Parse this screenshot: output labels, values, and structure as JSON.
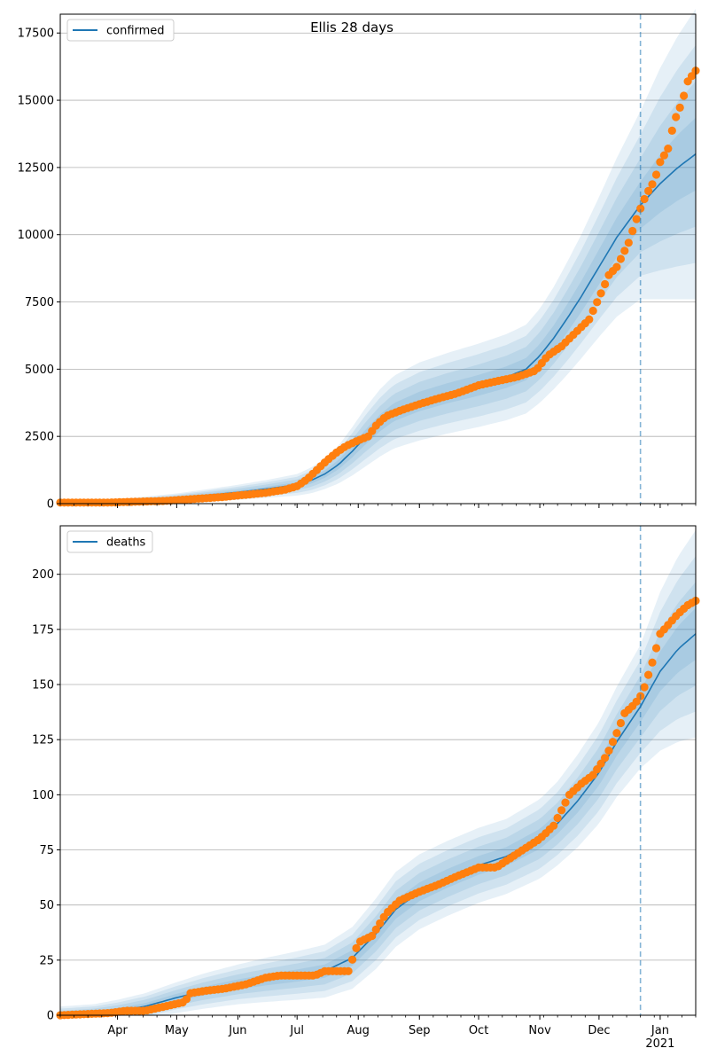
{
  "figure": {
    "title": "Ellis 28 days"
  },
  "colors": {
    "model_line": "#1f77b4",
    "band": "#1f77b4",
    "observed": "#ff7f0e",
    "grid": "#b0b0b0",
    "marker_line": "#1f77b4"
  },
  "chart_data": [
    {
      "type": "line",
      "legend": "confirmed",
      "legend_position": "top-left",
      "grid": "y",
      "ylim": [
        0,
        18200
      ],
      "yticks": [
        0,
        2500,
        5000,
        7500,
        10000,
        12500,
        15000,
        17500
      ],
      "x_range": [
        "2020-03-03",
        "2021-01-19"
      ],
      "xtick_labels": [],
      "vertical_marker": "2020-12-22",
      "series": [
        {
          "name": "confirmed",
          "kind": "model",
          "x": [
            "2020-03-03",
            "2020-03-20",
            "2020-04-01",
            "2020-04-15",
            "2020-05-01",
            "2020-05-15",
            "2020-06-01",
            "2020-06-15",
            "2020-07-01",
            "2020-07-08",
            "2020-07-15",
            "2020-07-22",
            "2020-07-29",
            "2020-08-05",
            "2020-08-12",
            "2020-08-19",
            "2020-09-01",
            "2020-09-15",
            "2020-10-01",
            "2020-10-15",
            "2020-10-25",
            "2020-11-01",
            "2020-11-08",
            "2020-11-15",
            "2020-11-22",
            "2020-12-01",
            "2020-12-10",
            "2020-12-22",
            "2021-01-01",
            "2021-01-10",
            "2021-01-19"
          ],
          "values": [
            0,
            10,
            60,
            120,
            200,
            300,
            420,
            540,
            700,
            860,
            1100,
            1450,
            1950,
            2500,
            3000,
            3400,
            3800,
            4100,
            4400,
            4700,
            5000,
            5500,
            6150,
            6900,
            7700,
            8800,
            9900,
            11100,
            11900,
            12500,
            13000
          ],
          "band_width": [
            40,
            60,
            100,
            140,
            180,
            220,
            280,
            330,
            400,
            480,
            560,
            700,
            900,
            1100,
            1250,
            1350,
            1450,
            1500,
            1550,
            1600,
            1650,
            1750,
            1900,
            2100,
            2300,
            2600,
            2950,
            3500,
            4300,
            4900,
            5400
          ]
        },
        {
          "name": "observed confirmed",
          "kind": "observed",
          "x": [
            "2020-03-03",
            "2020-03-15",
            "2020-03-28",
            "2020-04-05",
            "2020-04-15",
            "2020-04-25",
            "2020-05-05",
            "2020-05-15",
            "2020-05-25",
            "2020-06-05",
            "2020-06-15",
            "2020-06-25",
            "2020-07-01",
            "2020-07-06",
            "2020-07-11",
            "2020-07-16",
            "2020-07-21",
            "2020-07-26",
            "2020-08-01",
            "2020-08-06",
            "2020-08-10",
            "2020-08-15",
            "2020-08-22",
            "2020-09-01",
            "2020-09-10",
            "2020-09-20",
            "2020-10-01",
            "2020-10-10",
            "2020-10-20",
            "2020-10-30",
            "2020-11-05",
            "2020-11-12",
            "2020-11-19",
            "2020-11-26",
            "2020-12-01",
            "2020-12-06",
            "2020-12-10",
            "2020-12-16",
            "2020-12-21",
            "2020-12-25",
            "2020-12-29",
            "2021-01-01",
            "2021-01-05",
            "2021-01-08",
            "2021-01-12",
            "2021-01-15",
            "2021-01-19"
          ],
          "values": [
            40,
            40,
            40,
            60,
            80,
            100,
            150,
            200,
            250,
            330,
            400,
            520,
            650,
            900,
            1250,
            1600,
            1900,
            2150,
            2350,
            2500,
            2900,
            3250,
            3450,
            3700,
            3900,
            4100,
            4400,
            4550,
            4700,
            4950,
            5500,
            5850,
            6350,
            6850,
            7650,
            8500,
            8800,
            9700,
            10800,
            11500,
            12000,
            12700,
            13200,
            14200,
            14900,
            15700,
            16100
          ]
        }
      ]
    },
    {
      "type": "line",
      "legend": "deaths",
      "legend_position": "top-left",
      "grid": "y",
      "ylim": [
        0,
        222
      ],
      "yticks": [
        0,
        25,
        50,
        75,
        100,
        125,
        150,
        175,
        200
      ],
      "x_range": [
        "2020-03-03",
        "2021-01-19"
      ],
      "xtick_labels": [
        {
          "date": "2020-04-01",
          "label": "Apr"
        },
        {
          "date": "2020-05-01",
          "label": "May"
        },
        {
          "date": "2020-06-01",
          "label": "Jun"
        },
        {
          "date": "2020-07-01",
          "label": "Jul"
        },
        {
          "date": "2020-08-01",
          "label": "Aug"
        },
        {
          "date": "2020-09-01",
          "label": "Sep"
        },
        {
          "date": "2020-10-01",
          "label": "Oct"
        },
        {
          "date": "2020-11-01",
          "label": "Nov"
        },
        {
          "date": "2020-12-01",
          "label": "Dec"
        },
        {
          "date": "2021-01-01",
          "label": "Jan\n2021"
        }
      ],
      "vertical_marker": "2020-12-22",
      "series": [
        {
          "name": "deaths",
          "kind": "model",
          "x": [
            "2020-03-03",
            "2020-03-20",
            "2020-04-01",
            "2020-04-15",
            "2020-05-01",
            "2020-05-15",
            "2020-06-01",
            "2020-06-15",
            "2020-07-01",
            "2020-07-15",
            "2020-07-29",
            "2020-08-10",
            "2020-08-20",
            "2020-09-01",
            "2020-09-15",
            "2020-10-01",
            "2020-10-15",
            "2020-11-01",
            "2020-11-10",
            "2020-11-20",
            "2020-12-01",
            "2020-12-10",
            "2020-12-22",
            "2021-01-01",
            "2021-01-10",
            "2021-01-19"
          ],
          "values": [
            0,
            1,
            2,
            4,
            8,
            11,
            14,
            16,
            18,
            20,
            26,
            37,
            48,
            56,
            62,
            68,
            72,
            80,
            87,
            97,
            110,
            124,
            140,
            156,
            166,
            173
          ],
          "band_width": [
            4,
            4,
            5,
            6,
            7,
            8,
            9,
            10,
            11,
            12,
            14,
            16,
            17,
            17,
            17,
            17,
            17,
            18,
            19,
            21,
            23,
            25,
            28,
            36,
            42,
            47
          ]
        },
        {
          "name": "observed deaths",
          "kind": "observed",
          "x": [
            "2020-03-03",
            "2020-03-28",
            "2020-04-05",
            "2020-04-15",
            "2020-04-25",
            "2020-05-05",
            "2020-05-08",
            "2020-05-15",
            "2020-05-25",
            "2020-06-05",
            "2020-06-15",
            "2020-06-22",
            "2020-07-01",
            "2020-07-10",
            "2020-07-15",
            "2020-07-27",
            "2020-08-01",
            "2020-08-08",
            "2020-08-15",
            "2020-08-22",
            "2020-09-01",
            "2020-09-10",
            "2020-09-20",
            "2020-10-01",
            "2020-10-10",
            "2020-10-20",
            "2020-11-01",
            "2020-11-08",
            "2020-11-12",
            "2020-11-16",
            "2020-11-22",
            "2020-11-28",
            "2020-12-05",
            "2020-12-10",
            "2020-12-14",
            "2020-12-19",
            "2020-12-23",
            "2020-12-28",
            "2021-01-01",
            "2021-01-05",
            "2021-01-10",
            "2021-01-15",
            "2021-01-19"
          ],
          "values": [
            0,
            1,
            2,
            2,
            4,
            6,
            10,
            11,
            12,
            14,
            17,
            18,
            18,
            18,
            20,
            20,
            33,
            36,
            46,
            52,
            56,
            59,
            63,
            67,
            67,
            73,
            80,
            86,
            93,
            100,
            105,
            109,
            118,
            128,
            137,
            141,
            146,
            160,
            173,
            177,
            182,
            186,
            188
          ]
        }
      ]
    }
  ]
}
